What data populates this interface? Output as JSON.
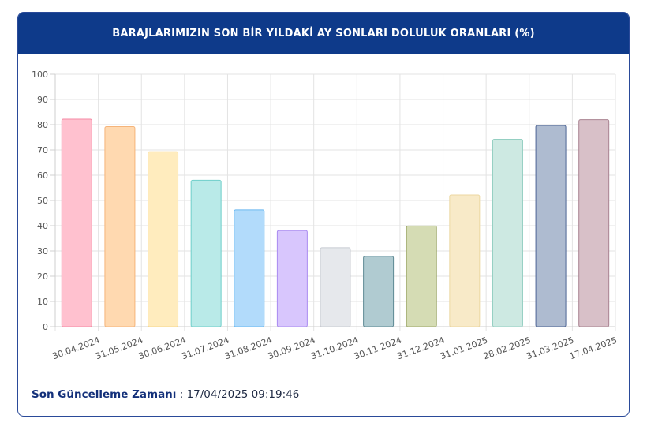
{
  "header": {
    "title": "BARAJLARIMIZIN SON BİR YILDAKİ AY SONLARI DOLULUK ORANLARI (%)"
  },
  "chart_data": {
    "type": "bar",
    "categories": [
      "30.04.2024",
      "31.05.2024",
      "30.06.2024",
      "31.07.2024",
      "31.08.2024",
      "30.09.2024",
      "31.10.2024",
      "30.11.2024",
      "31.12.2024",
      "31.01.2025",
      "28.02.2025",
      "31.03.2025",
      "17.04.2025"
    ],
    "values": [
      82.2,
      79.2,
      69.3,
      58.0,
      46.3,
      38.1,
      31.3,
      27.9,
      39.9,
      52.2,
      74.2,
      79.7,
      82.0
    ],
    "colors": [
      "#ffc1cf",
      "#ffd9b0",
      "#ffecbe",
      "#b9eae8",
      "#b2dbfb",
      "#d8c6fd",
      "#e6e8ec",
      "#b0cbd1",
      "#d5dcb4",
      "#f8eac8",
      "#cde9e2",
      "#aebbd0",
      "#d8c0c8"
    ],
    "borders": [
      "#f58aa6",
      "#f5b47a",
      "#f5d68c",
      "#6fcfca",
      "#6ab8f0",
      "#a98af0",
      "#c8cbd2",
      "#5d8893",
      "#9ea96a",
      "#ecd7a0",
      "#94cfc2",
      "#4d6494",
      "#a98391"
    ],
    "yticks": [
      0,
      10,
      20,
      30,
      40,
      50,
      60,
      70,
      80,
      90,
      100
    ],
    "ylim": [
      0,
      100
    ],
    "grid": true
  },
  "footer": {
    "label": "Son Güncelleme Zamanı",
    "separator": " : ",
    "value": "17/04/2025 09:19:46"
  }
}
